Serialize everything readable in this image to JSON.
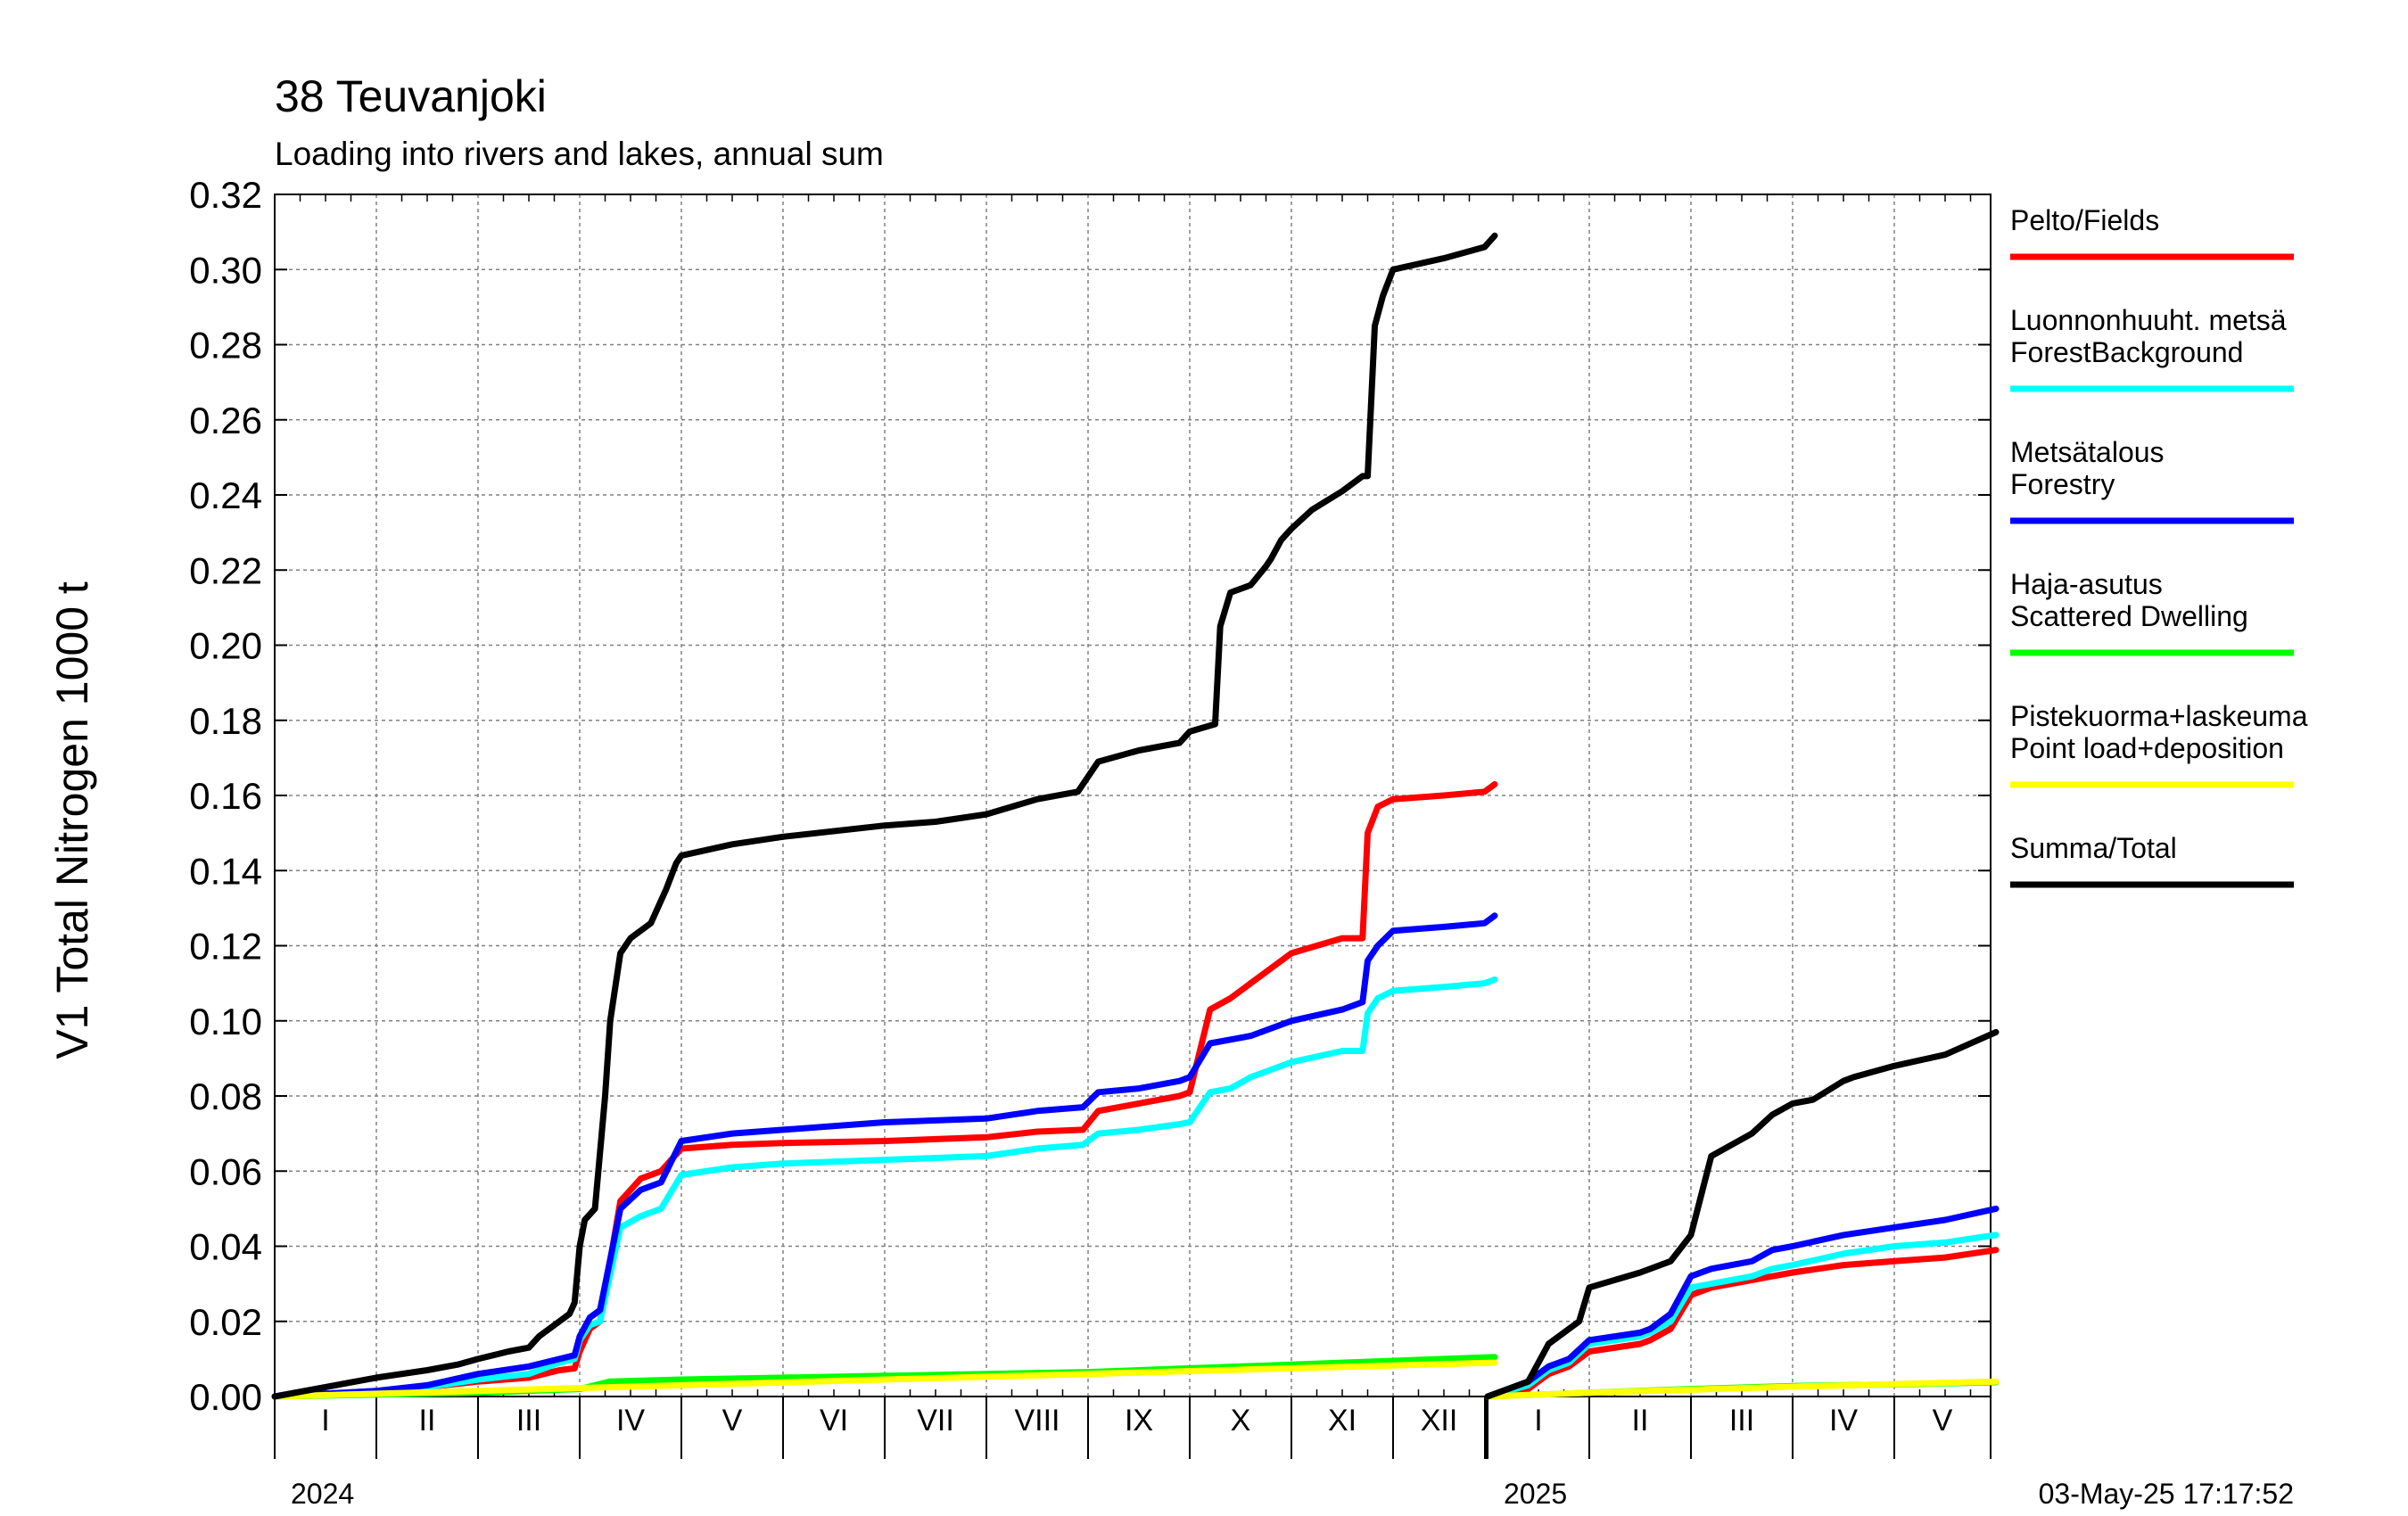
{
  "chart_data": {
    "type": "line",
    "title": "38 Teuvanjoki",
    "subtitle": "Loading into rivers and lakes, annual sum",
    "ylabel": "V1 Total Nitrogen 1000 t",
    "ylim": [
      0,
      0.32
    ],
    "yticks": [
      "0.00",
      "0.02",
      "0.04",
      "0.06",
      "0.08",
      "0.10",
      "0.12",
      "0.14",
      "0.16",
      "0.18",
      "0.20",
      "0.22",
      "0.24",
      "0.26",
      "0.28",
      "0.30",
      "0.32"
    ],
    "grid": true,
    "legend_placement": "right",
    "timestamp": "03-May-25 17:17:52",
    "years": [
      {
        "label": "2024",
        "months": [
          "I",
          "II",
          "III",
          "IV",
          "V",
          "VI",
          "VII",
          "VIII",
          "IX",
          "X",
          "XI",
          "XII"
        ]
      },
      {
        "label": "2025",
        "months": [
          "I",
          "II",
          "III",
          "IV",
          "V"
        ]
      }
    ],
    "x_unit": "months since start of year",
    "series": [
      {
        "name": "Pelto/Fields",
        "color": "#ff0000",
        "segments": [
          {
            "year": "2024",
            "x": [
              0,
              1,
              1.5,
              2,
              2.5,
              2.8,
              2.95,
              3.0,
              3.1,
              3.2,
              3.4,
              3.6,
              3.8,
              4.0,
              4.5,
              5,
              6,
              7,
              7.5,
              7.95,
              8.1,
              8.5,
              8.9,
              9.0,
              9.2,
              9.4,
              9.6,
              10,
              10.5,
              10.7,
              10.75,
              10.85,
              11,
              11.5,
              11.9,
              12.0
            ],
            "y": [
              0,
              0.0015,
              0.0025,
              0.004,
              0.005,
              0.007,
              0.0075,
              0.012,
              0.018,
              0.02,
              0.052,
              0.058,
              0.06,
              0.066,
              0.067,
              0.0675,
              0.068,
              0.069,
              0.0705,
              0.071,
              0.076,
              0.078,
              0.08,
              0.081,
              0.103,
              0.106,
              0.11,
              0.118,
              0.122,
              0.122,
              0.15,
              0.157,
              0.159,
              0.16,
              0.161,
              0.163
            ]
          },
          {
            "year": "2025",
            "x": [
              0,
              0.2,
              0.4,
              0.6,
              0.8,
              1.0,
              1.5,
              1.6,
              1.8,
              2.0,
              2.2,
              2.6,
              2.8,
              3.0,
              3.5,
              4.0,
              4.5,
              5.0
            ],
            "y": [
              0,
              0.001,
              0.002,
              0.006,
              0.008,
              0.012,
              0.014,
              0.015,
              0.018,
              0.027,
              0.029,
              0.031,
              0.032,
              0.033,
              0.035,
              0.036,
              0.037,
              0.039
            ]
          }
        ]
      },
      {
        "name": "Luonnonhuuht. metsä ForestBackground",
        "color": "#00ffff",
        "segments": [
          {
            "year": "2024",
            "x": [
              0,
              1,
              1.5,
              2,
              2.5,
              2.8,
              2.95,
              3.0,
              3.1,
              3.2,
              3.4,
              3.6,
              3.8,
              4.0,
              4.5,
              5,
              6,
              7,
              7.5,
              7.95,
              8.1,
              8.5,
              8.9,
              9.0,
              9.2,
              9.4,
              9.6,
              10,
              10.5,
              10.7,
              10.75,
              10.85,
              11,
              11.5,
              11.9,
              12.0
            ],
            "y": [
              0,
              0.0015,
              0.0025,
              0.0045,
              0.006,
              0.009,
              0.01,
              0.015,
              0.019,
              0.02,
              0.045,
              0.048,
              0.05,
              0.059,
              0.061,
              0.062,
              0.063,
              0.064,
              0.066,
              0.067,
              0.07,
              0.071,
              0.0725,
              0.073,
              0.081,
              0.082,
              0.085,
              0.089,
              0.092,
              0.092,
              0.102,
              0.106,
              0.108,
              0.109,
              0.11,
              0.111
            ]
          },
          {
            "year": "2025",
            "x": [
              0,
              0.2,
              0.4,
              0.6,
              0.8,
              1.0,
              1.5,
              1.6,
              1.8,
              2.0,
              2.2,
              2.6,
              2.8,
              3.0,
              3.5,
              4.0,
              4.5,
              5.0
            ],
            "y": [
              0,
              0.0015,
              0.003,
              0.007,
              0.009,
              0.014,
              0.016,
              0.017,
              0.02,
              0.029,
              0.03,
              0.032,
              0.034,
              0.035,
              0.038,
              0.04,
              0.041,
              0.043
            ]
          }
        ]
      },
      {
        "name": "Metsätalous Forestry",
        "color": "#0000ff",
        "segments": [
          {
            "year": "2024",
            "x": [
              0,
              1,
              1.5,
              2,
              2.5,
              2.8,
              2.95,
              3.0,
              3.1,
              3.2,
              3.4,
              3.6,
              3.8,
              4.0,
              4.5,
              5,
              6,
              7,
              7.5,
              7.95,
              8.1,
              8.5,
              8.9,
              9.0,
              9.2,
              9.4,
              9.6,
              10,
              10.5,
              10.7,
              10.75,
              10.85,
              11,
              11.5,
              11.9,
              12.0
            ],
            "y": [
              0,
              0.0015,
              0.003,
              0.006,
              0.008,
              0.01,
              0.011,
              0.016,
              0.021,
              0.023,
              0.05,
              0.055,
              0.057,
              0.068,
              0.07,
              0.071,
              0.073,
              0.074,
              0.076,
              0.077,
              0.081,
              0.082,
              0.084,
              0.085,
              0.094,
              0.095,
              0.096,
              0.1,
              0.103,
              0.105,
              0.116,
              0.12,
              0.124,
              0.125,
              0.126,
              0.128
            ]
          },
          {
            "year": "2025",
            "x": [
              0,
              0.2,
              0.4,
              0.6,
              0.8,
              1.0,
              1.5,
              1.6,
              1.8,
              2.0,
              2.2,
              2.6,
              2.8,
              3.0,
              3.5,
              4.0,
              4.5,
              5.0
            ],
            "y": [
              0,
              0.002,
              0.004,
              0.008,
              0.01,
              0.015,
              0.017,
              0.018,
              0.022,
              0.032,
              0.034,
              0.036,
              0.039,
              0.04,
              0.043,
              0.045,
              0.047,
              0.05
            ]
          }
        ]
      },
      {
        "name": "Haja-asutus Scattered Dwelling",
        "color": "#00ff00",
        "segments": [
          {
            "year": "2024",
            "x": [
              0,
              1,
              2,
              3,
              3.3,
              4,
              5,
              6,
              7,
              8,
              9,
              10,
              11,
              12
            ],
            "y": [
              0,
              0.0005,
              0.001,
              0.002,
              0.004,
              0.0045,
              0.005,
              0.0055,
              0.006,
              0.0065,
              0.0075,
              0.0085,
              0.0095,
              0.0105
            ]
          },
          {
            "year": "2025",
            "x": [
              0,
              1,
              2,
              3,
              4,
              5
            ],
            "y": [
              0,
              0.001,
              0.002,
              0.0028,
              0.0032,
              0.0038
            ]
          }
        ]
      },
      {
        "name": "Pistekuorma+laskeuma Point load+deposition",
        "color": "#ffff00",
        "segments": [
          {
            "year": "2024",
            "x": [
              0,
              2,
              4,
              6,
              8,
              10,
              12
            ],
            "y": [
              0,
              0.0015,
              0.003,
              0.0045,
              0.006,
              0.0075,
              0.009
            ]
          },
          {
            "year": "2025",
            "x": [
              0,
              1,
              2,
              3,
              4,
              5
            ],
            "y": [
              0,
              0.001,
              0.0018,
              0.0026,
              0.0033,
              0.004
            ]
          }
        ]
      },
      {
        "name": "Summa/Total",
        "color": "#000000",
        "segments": [
          {
            "year": "2024",
            "x": [
              0,
              1,
              1.5,
              1.8,
              2.0,
              2.3,
              2.5,
              2.6,
              2.8,
              2.9,
              2.95,
              3.0,
              3.05,
              3.15,
              3.25,
              3.3,
              3.4,
              3.5,
              3.7,
              3.85,
              3.95,
              4.0,
              4.5,
              5,
              6,
              6.5,
              7,
              7.5,
              7.9,
              8.0,
              8.1,
              8.5,
              8.9,
              9.0,
              9.25,
              9.3,
              9.4,
              9.6,
              9.75,
              9.8,
              9.9,
              10.0,
              10.2,
              10.5,
              10.7,
              10.75,
              10.82,
              10.9,
              11,
              11.5,
              11.9,
              12.0
            ],
            "y": [
              0,
              0.005,
              0.007,
              0.0085,
              0.01,
              0.012,
              0.013,
              0.016,
              0.02,
              0.022,
              0.025,
              0.04,
              0.047,
              0.05,
              0.08,
              0.1,
              0.118,
              0.122,
              0.126,
              0.135,
              0.142,
              0.144,
              0.147,
              0.149,
              0.152,
              0.153,
              0.155,
              0.159,
              0.161,
              0.165,
              0.169,
              0.172,
              0.174,
              0.177,
              0.179,
              0.205,
              0.214,
              0.216,
              0.221,
              0.223,
              0.228,
              0.231,
              0.236,
              0.241,
              0.245,
              0.245,
              0.285,
              0.293,
              0.3,
              0.303,
              0.306,
              0.309
            ]
          },
          {
            "year": "2025",
            "x": [
              0,
              0.3,
              0.4,
              0.6,
              0.8,
              0.9,
              1.0,
              1.5,
              1.8,
              2.0,
              2.2,
              2.6,
              2.8,
              3.0,
              3.2,
              3.5,
              3.6,
              4.0,
              4.5,
              5.0
            ],
            "y": [
              0,
              0.003,
              0.004,
              0.014,
              0.018,
              0.02,
              0.029,
              0.033,
              0.036,
              0.043,
              0.064,
              0.07,
              0.075,
              0.078,
              0.079,
              0.084,
              0.085,
              0.088,
              0.091,
              0.097
            ]
          }
        ]
      }
    ]
  }
}
